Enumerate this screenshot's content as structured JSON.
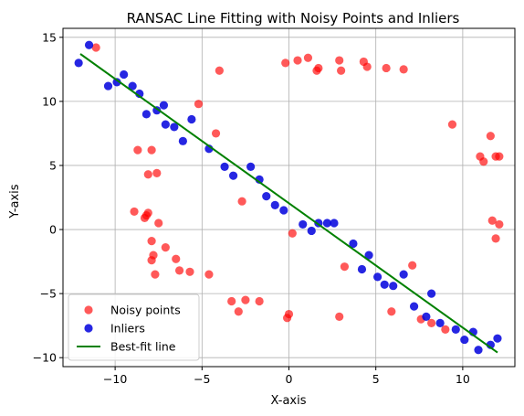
{
  "chart_data": {
    "type": "scatter",
    "title": "RANSAC Line Fitting with Noisy Points and Inliers",
    "xlabel": "X-axis",
    "ylabel": "Y-axis",
    "xlim": [
      -13.0,
      13.0
    ],
    "ylim": [
      -10.7,
      15.7
    ],
    "xticks": [
      -10,
      -5,
      0,
      5,
      10
    ],
    "yticks": [
      -10,
      -5,
      0,
      5,
      10,
      15
    ],
    "grid": true,
    "legend_position": "lower-left",
    "series": [
      {
        "name": "Noisy points",
        "kind": "scatter",
        "color": "#ff0000",
        "points": [
          [
            -11.1,
            14.2
          ],
          [
            -8.7,
            6.2
          ],
          [
            -7.9,
            6.2
          ],
          [
            -8.1,
            4.3
          ],
          [
            -7.6,
            4.4
          ],
          [
            -8.9,
            1.4
          ],
          [
            -8.3,
            0.9
          ],
          [
            -8.2,
            1.1
          ],
          [
            -8.1,
            1.3
          ],
          [
            -7.5,
            0.5
          ],
          [
            -7.9,
            -0.9
          ],
          [
            -7.8,
            -2.0
          ],
          [
            -7.9,
            -2.4
          ],
          [
            -7.7,
            -3.5
          ],
          [
            -7.1,
            -1.4
          ],
          [
            -6.5,
            -2.3
          ],
          [
            -6.3,
            -3.2
          ],
          [
            -5.7,
            -3.3
          ],
          [
            -5.2,
            9.8
          ],
          [
            -4.6,
            -3.5
          ],
          [
            -4.2,
            7.5
          ],
          [
            -4.0,
            12.4
          ],
          [
            -3.3,
            -5.6
          ],
          [
            -2.9,
            -6.4
          ],
          [
            -2.5,
            -5.5
          ],
          [
            -1.7,
            -5.6
          ],
          [
            -2.7,
            2.2
          ],
          [
            -0.2,
            13.0
          ],
          [
            0.5,
            13.2
          ],
          [
            1.1,
            13.4
          ],
          [
            1.6,
            12.4
          ],
          [
            1.7,
            12.6
          ],
          [
            0.2,
            -0.3
          ],
          [
            -0.1,
            -6.9
          ],
          [
            0.0,
            -6.6
          ],
          [
            2.9,
            13.2
          ],
          [
            3.0,
            12.4
          ],
          [
            3.2,
            -2.9
          ],
          [
            2.9,
            -6.8
          ],
          [
            4.3,
            13.1
          ],
          [
            4.5,
            12.7
          ],
          [
            5.6,
            12.6
          ],
          [
            6.6,
            12.5
          ],
          [
            5.9,
            -6.4
          ],
          [
            7.1,
            -2.8
          ],
          [
            7.6,
            -7.0
          ],
          [
            8.2,
            -7.3
          ],
          [
            9.0,
            -7.8
          ],
          [
            9.4,
            8.2
          ],
          [
            11.0,
            5.7
          ],
          [
            11.2,
            5.3
          ],
          [
            11.6,
            7.3
          ],
          [
            11.9,
            5.7
          ],
          [
            12.1,
            5.7
          ],
          [
            11.7,
            0.7
          ],
          [
            12.1,
            0.4
          ],
          [
            11.9,
            -0.7
          ]
        ]
      },
      {
        "name": "Inliers",
        "kind": "scatter",
        "color": "#0000dd",
        "points": [
          [
            -12.1,
            13.0
          ],
          [
            -11.5,
            14.4
          ],
          [
            -10.4,
            11.2
          ],
          [
            -9.9,
            11.5
          ],
          [
            -9.5,
            12.1
          ],
          [
            -9.0,
            11.2
          ],
          [
            -8.6,
            10.6
          ],
          [
            -8.2,
            9.0
          ],
          [
            -7.6,
            9.3
          ],
          [
            -7.2,
            9.7
          ],
          [
            -7.1,
            8.2
          ],
          [
            -6.6,
            8.0
          ],
          [
            -6.1,
            6.9
          ],
          [
            -5.6,
            8.6
          ],
          [
            -4.6,
            6.3
          ],
          [
            -3.7,
            4.9
          ],
          [
            -3.2,
            4.2
          ],
          [
            -2.2,
            4.9
          ],
          [
            -1.7,
            3.9
          ],
          [
            -1.3,
            2.6
          ],
          [
            -0.8,
            1.9
          ],
          [
            -0.3,
            1.5
          ],
          [
            0.8,
            0.4
          ],
          [
            1.3,
            -0.1
          ],
          [
            1.7,
            0.5
          ],
          [
            2.2,
            0.5
          ],
          [
            2.6,
            0.5
          ],
          [
            3.7,
            -1.1
          ],
          [
            4.2,
            -3.1
          ],
          [
            4.6,
            -2.0
          ],
          [
            5.1,
            -3.7
          ],
          [
            5.5,
            -4.3
          ],
          [
            6.0,
            -4.4
          ],
          [
            6.6,
            -3.5
          ],
          [
            7.2,
            -6.0
          ],
          [
            7.9,
            -6.8
          ],
          [
            8.2,
            -5.0
          ],
          [
            8.7,
            -7.3
          ],
          [
            9.6,
            -7.8
          ],
          [
            10.1,
            -8.6
          ],
          [
            10.6,
            -8.0
          ],
          [
            10.9,
            -9.4
          ],
          [
            11.6,
            -9.0
          ],
          [
            12.0,
            -8.5
          ]
        ]
      },
      {
        "name": "Best-fit line",
        "kind": "line",
        "color": "#008000",
        "points": [
          [
            -12.0,
            13.7
          ],
          [
            12.0,
            -9.6
          ]
        ]
      }
    ]
  }
}
